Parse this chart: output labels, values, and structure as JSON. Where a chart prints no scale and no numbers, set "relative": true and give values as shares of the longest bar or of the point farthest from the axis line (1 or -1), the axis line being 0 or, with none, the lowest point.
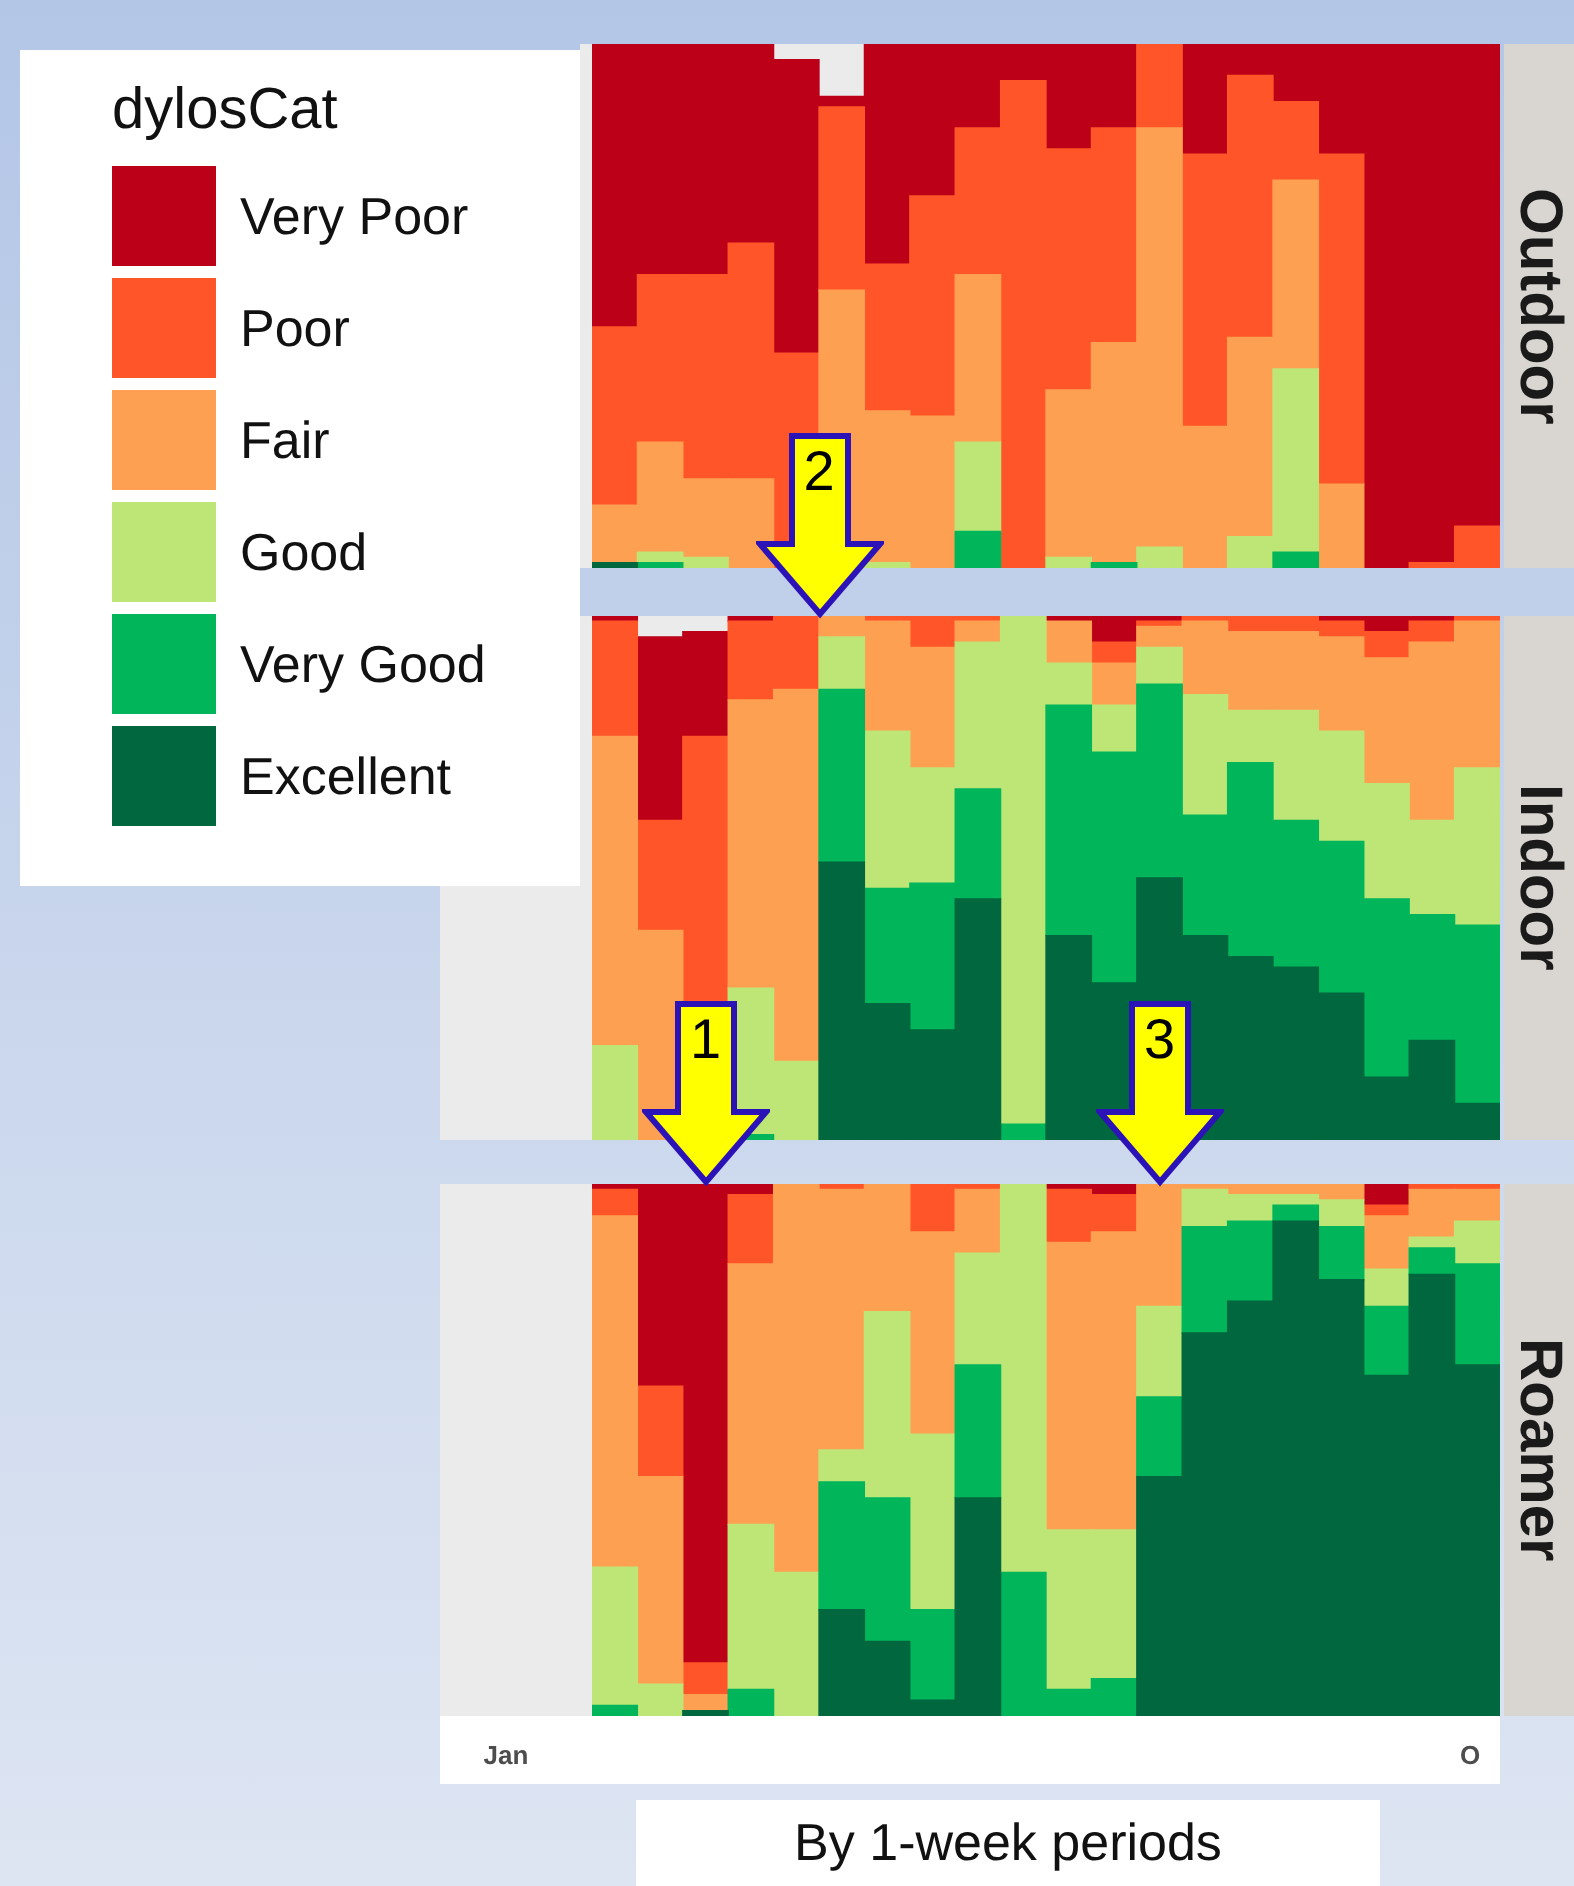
{
  "chart_data": [
    {
      "type": "bar",
      "title": "Outdoor",
      "legend_title": "dylosCat",
      "legend": "left",
      "stacked": true,
      "relative": true,
      "categories": [
        null,
        null,
        null,
        null,
        null,
        null,
        null,
        null,
        null,
        null,
        null,
        null,
        null,
        null,
        null,
        null,
        null,
        null,
        null,
        null
      ],
      "series": [
        {
          "name": "Excellent",
          "color": "#00673e",
          "values": [
            0.01,
            0,
            0,
            0,
            0,
            0,
            0,
            0,
            0,
            0,
            0,
            0,
            0,
            0,
            0,
            0,
            0,
            0,
            0,
            0
          ]
        },
        {
          "name": "Very Good",
          "color": "#00b55a",
          "values": [
            0,
            0.01,
            0,
            0,
            0,
            null,
            0,
            0,
            0.07,
            0,
            0,
            0.01,
            0,
            0,
            0,
            0.03,
            0,
            0,
            0,
            0
          ]
        },
        {
          "name": "Good",
          "color": "#bde677",
          "values": [
            0,
            0.02,
            0.02,
            0,
            0,
            null,
            0.01,
            0,
            0.17,
            0,
            0.02,
            0,
            0.04,
            0,
            0.06,
            0.35,
            0,
            0,
            0,
            0
          ]
        },
        {
          "name": "Fair",
          "color": "#fea052",
          "values": [
            0.11,
            0.21,
            0.15,
            0.17,
            null,
            0.53,
            0.29,
            0.29,
            0.32,
            0,
            0.32,
            0.42,
            0.8,
            0.27,
            0.38,
            0.36,
            0.16,
            0,
            0,
            0
          ]
        },
        {
          "name": "Poor",
          "color": "#ff5529",
          "values": [
            0.34,
            0.32,
            0.39,
            0.45,
            0.41,
            0.35,
            0.28,
            0.42,
            0.28,
            0.93,
            0.46,
            0.41,
            0.16,
            0.52,
            0.5,
            0.15,
            0.63,
            0,
            0.01,
            0.08
          ]
        },
        {
          "name": "Very Poor",
          "color": "#bc0018",
          "values": [
            0.54,
            0.44,
            0.44,
            0.38,
            0.56,
            0.02,
            0.42,
            0.29,
            0.16,
            0.07,
            0.2,
            0.16,
            0,
            0.21,
            0.06,
            0.11,
            0.21,
            1,
            0.99,
            0.92
          ]
        }
      ]
    },
    {
      "type": "bar",
      "title": "Indoor",
      "stacked": true,
      "relative": true,
      "annotations": [
        "2"
      ],
      "categories": [
        null,
        null,
        null,
        null,
        null,
        null,
        null,
        null,
        null,
        null,
        null,
        null,
        null,
        null,
        null,
        null,
        null,
        null,
        null,
        null
      ],
      "series": [
        {
          "color": "#00673e",
          "values": [
            0,
            0,
            0,
            0,
            0,
            0.53,
            0.26,
            0.21,
            0.46,
            0,
            0.39,
            0.3,
            0.5,
            0.39,
            0.35,
            0.33,
            0.28,
            0.12,
            0.19,
            0.07
          ]
        },
        {
          "color": "#00b55a",
          "values": [
            0,
            0,
            0,
            0.01,
            0,
            0.33,
            0.22,
            0.28,
            0.21,
            0.03,
            0.44,
            0.44,
            0.37,
            0.23,
            0.37,
            0.28,
            0.29,
            0.34,
            0.24,
            0.34
          ]
        },
        {
          "color": "#bde677",
          "values": [
            0.18,
            null,
            null,
            0.28,
            0.15,
            0.1,
            0.3,
            0.22,
            0.28,
            0.97,
            0.08,
            0.09,
            0.07,
            0.23,
            0.1,
            0.21,
            0.21,
            0.22,
            0.18,
            0.3
          ]
        },
        {
          "color": "#fea052",
          "values": [
            0.59,
            0.4,
            null,
            0.55,
            0.71,
            0.04,
            0.21,
            0.23,
            0.04,
            0,
            0.08,
            0.08,
            0.04,
            0.14,
            0.15,
            0.15,
            0.18,
            0.24,
            0.34,
            0.28
          ]
        },
        {
          "color": "#ff5529",
          "values": [
            0.22,
            0.21,
            0.77,
            0.15,
            0.14,
            0,
            0.01,
            0.06,
            0.01,
            0,
            0,
            0.04,
            0.01,
            0.01,
            0.03,
            0.03,
            0.03,
            0.05,
            0.04,
            0.01
          ]
        },
        {
          "color": "#bc0018",
          "values": [
            0.01,
            0.35,
            0.2,
            0.01,
            0,
            0,
            0,
            0,
            0,
            0,
            0.01,
            0.05,
            0.01,
            0,
            0,
            0,
            0.01,
            0.03,
            0.01,
            0
          ]
        }
      ]
    },
    {
      "type": "bar",
      "title": "Roamer",
      "stacked": true,
      "relative": true,
      "annotations": [
        "1",
        "3",
        "Jan",
        "O",
        "By 1-week periods"
      ],
      "categories": [
        null,
        null,
        null,
        null,
        null,
        null,
        null,
        null,
        null,
        null,
        null,
        null,
        null,
        null,
        null,
        null,
        null,
        null,
        null,
        null
      ],
      "series": [
        {
          "color": "#00673e",
          "values": [
            0,
            0,
            0.01,
            0,
            0,
            0.2,
            0.14,
            0.03,
            0.41,
            0,
            0,
            0,
            0.45,
            0.72,
            0.78,
            0.93,
            0.82,
            0.64,
            0.83,
            0.66
          ]
        },
        {
          "color": "#00b55a",
          "values": [
            0.02,
            0,
            0,
            0.05,
            0,
            0.24,
            0.27,
            0.17,
            0.25,
            0.27,
            0.05,
            0.07,
            0.15,
            0.2,
            0.15,
            0.03,
            0.1,
            0.13,
            0.05,
            0.19
          ]
        },
        {
          "color": "#bde677",
          "values": [
            0.26,
            0.06,
            0,
            0.31,
            0.27,
            0.06,
            0.35,
            0.33,
            0.21,
            0.73,
            0.3,
            0.28,
            0.17,
            0.07,
            0.05,
            0.02,
            0.05,
            0.07,
            0.02,
            0.08
          ]
        },
        {
          "color": "#fea052",
          "values": [
            0.66,
            0.39,
            0.03,
            0.49,
            0.73,
            0.49,
            0.24,
            0.38,
            0.12,
            0,
            0.54,
            0.56,
            0.23,
            0.01,
            0.02,
            0.02,
            0.03,
            0.1,
            0.09,
            0.06
          ]
        },
        {
          "color": "#ff5529",
          "values": [
            0.05,
            0.17,
            0.06,
            0.13,
            0,
            0.01,
            0,
            0.09,
            0.01,
            0,
            0.1,
            0.07,
            0,
            0,
            0,
            0,
            0,
            0.02,
            0.01,
            0.01
          ]
        },
        {
          "color": "#bc0018",
          "values": [
            0.01,
            0.38,
            0.9,
            0.02,
            0,
            0,
            0,
            0,
            0,
            0,
            0.01,
            0.02,
            0,
            0,
            0,
            0,
            0,
            0.04,
            0,
            0
          ]
        }
      ]
    }
  ]
}
